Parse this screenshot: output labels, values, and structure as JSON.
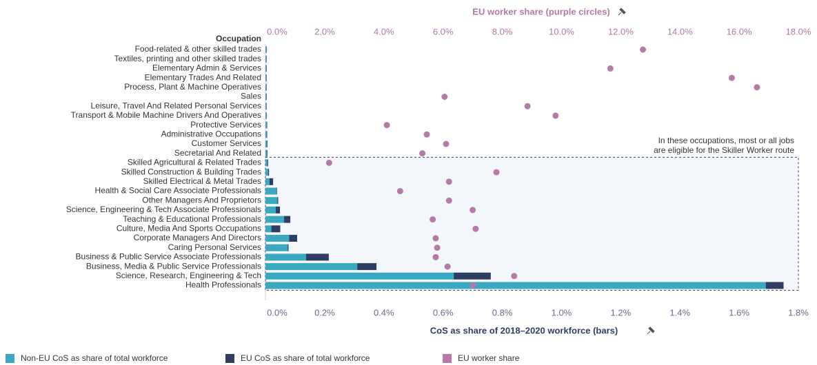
{
  "chart_data": {
    "type": "bar_dot",
    "orientation": "horizontal",
    "stacked": true,
    "category_axis_title": "Occupation",
    "xlabel": "CoS as share of 2018–2020 workforce (bars)",
    "x2label": "EU worker share (purple circles)",
    "categories": [
      "Food-related & other skilled trades",
      "Textiles, printing and other skilled trades",
      "Elementary Admin & Services",
      "Elementary Trades And Related",
      "Process, Plant & Machine Operatives",
      "Sales",
      "Leisure, Travel And Related Personal Services",
      "Transport & Mobile Machine Drivers And Operatives",
      "Protective Services",
      "Administrative Occupations",
      "Customer Services",
      "Secretarial And Related",
      "Skilled Agricultural & Related Trades",
      "Skilled Construction & Building Trades",
      "Skilled Electrical & Metal Trades",
      "Health & Social Care Associate Professionals",
      "Other Managers And Proprietors",
      "Science, Engineering & Tech Associate Professionals",
      "Teaching & Educational Professionals",
      "Culture, Media And Sports Occupations",
      "Corporate Managers And Directors",
      "Caring Personal Services",
      "Business & Public Service Associate Professionals",
      "Business, Media & Public Service Professionals",
      "Science, Research, Engineering & Tech",
      "Health Professionals"
    ],
    "series": [
      {
        "name": "Non-EU CoS as share of total workforce",
        "color": "#3aa8c1",
        "mark": "bar",
        "values": [
          0.002,
          0.002,
          0.002,
          0.002,
          0.002,
          0.002,
          0.002,
          0.002,
          0.004,
          0.004,
          0.005,
          0.005,
          0.007,
          0.009,
          0.014,
          0.037,
          0.04,
          0.035,
          0.063,
          0.02,
          0.08,
          0.075,
          0.137,
          0.31,
          0.636,
          1.69
        ]
      },
      {
        "name": "EU CoS as share of total workforce",
        "color": "#2f3d63",
        "mark": "bar",
        "values": [
          0.0005,
          0.0005,
          0.0005,
          0.0005,
          0.0005,
          0.0005,
          0.001,
          0.001,
          0.001,
          0.001,
          0.001,
          0.001,
          0.002,
          0.003,
          0.012,
          0.002,
          0.003,
          0.014,
          0.021,
          0.03,
          0.027,
          0.003,
          0.077,
          0.065,
          0.125,
          0.06
        ]
      },
      {
        "name": "EU worker share",
        "color": "#b57ba6",
        "mark": "dot",
        "axis": "x2",
        "values": [
          12.75,
          null,
          11.65,
          15.75,
          16.6,
          6.05,
          8.85,
          9.8,
          4.1,
          5.45,
          6.1,
          5.3,
          2.15,
          7.8,
          6.2,
          4.55,
          6.2,
          7.0,
          5.65,
          7.1,
          5.75,
          5.8,
          5.75,
          6.15,
          8.4,
          7.0
        ]
      }
    ],
    "xlim": [
      0,
      1.8
    ],
    "xticks": [
      {
        "value": 0,
        "label": "0.0%"
      },
      {
        "value": 0.2,
        "label": "0.2%"
      },
      {
        "value": 0.4,
        "label": "0.4%"
      },
      {
        "value": 0.6,
        "label": "0.6%"
      },
      {
        "value": 0.8,
        "label": "0.8%"
      },
      {
        "value": 1.0,
        "label": "1.0%"
      },
      {
        "value": 1.2,
        "label": "1.2%"
      },
      {
        "value": 1.4,
        "label": "1.4%"
      },
      {
        "value": 1.6,
        "label": "1.6%"
      },
      {
        "value": 1.8,
        "label": "1.8%"
      }
    ],
    "x2lim": [
      0,
      18
    ],
    "x2ticks": [
      {
        "value": 0,
        "label": "0.0%"
      },
      {
        "value": 2,
        "label": "2.0%"
      },
      {
        "value": 4,
        "label": "4.0%"
      },
      {
        "value": 6,
        "label": "6.0%"
      },
      {
        "value": 8,
        "label": "8.0%"
      },
      {
        "value": 10,
        "label": "10.0%"
      },
      {
        "value": 12,
        "label": "12.0%"
      },
      {
        "value": 14,
        "label": "14.0%"
      },
      {
        "value": 16,
        "label": "16.0%"
      },
      {
        "value": 18,
        "label": "18.0%"
      }
    ],
    "annotation": [
      "In these occupations, most or all jobs",
      "are eligible for the Skiller Worker route"
    ],
    "legend": "bottom-left"
  }
}
